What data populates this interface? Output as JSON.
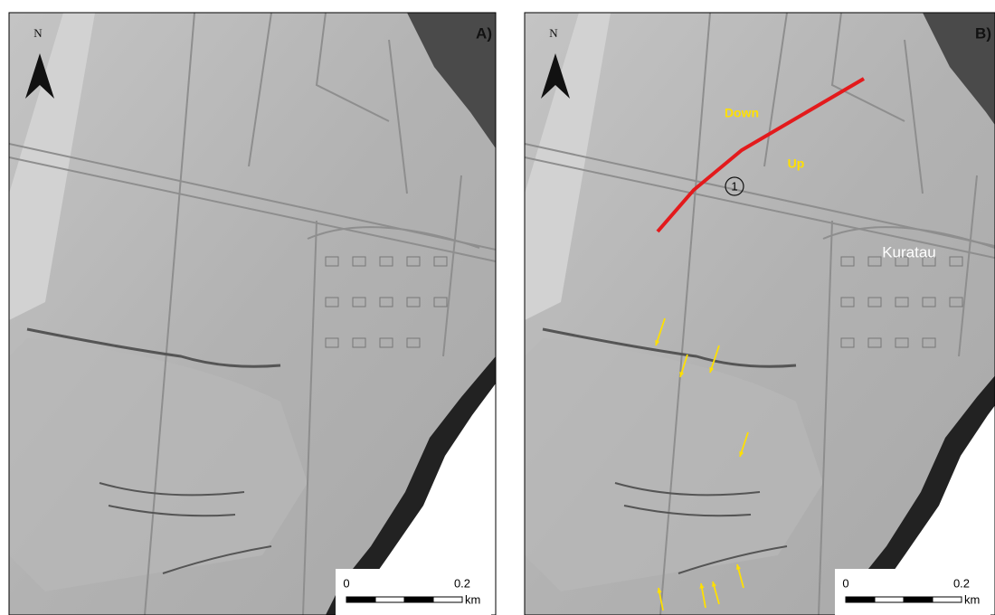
{
  "panels": [
    {
      "label": "A)",
      "north": "N",
      "scale": {
        "start": "0",
        "end": "0.2",
        "unit": "km"
      }
    },
    {
      "label": "B)",
      "north": "N",
      "scale": {
        "start": "0",
        "end": "0.2",
        "unit": "km"
      },
      "annotations": {
        "down": "Down",
        "up": "Up",
        "fault_number": "1",
        "place": "Kuratau"
      }
    }
  ]
}
